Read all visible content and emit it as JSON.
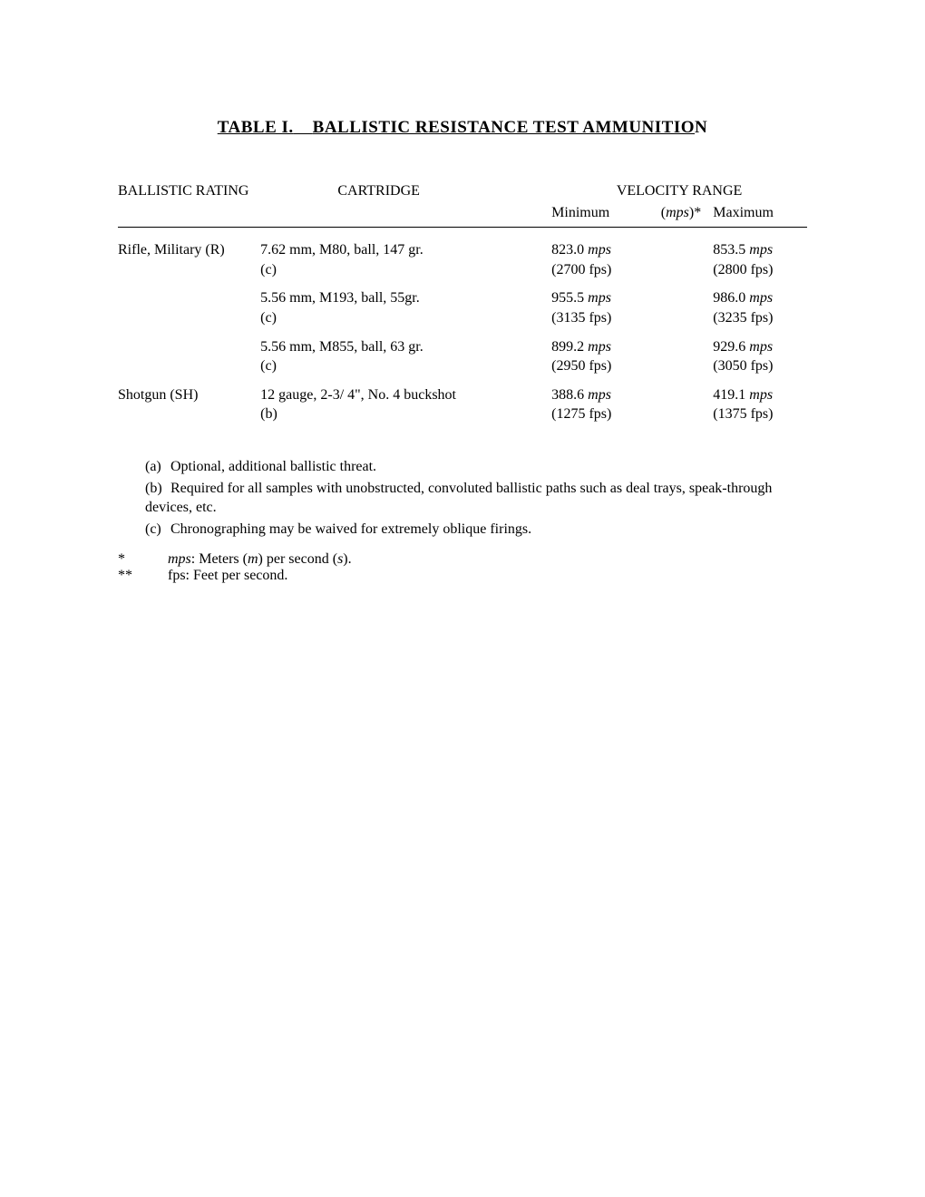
{
  "title": {
    "prefix": "TABLE I.",
    "gap": "    ",
    "main": "BALLISTIC RESISTANCE TEST AMMUNITIO",
    "trailing": "N"
  },
  "headers": {
    "rating": "BALLISTIC RATING",
    "cartridge": "CARTRIDGE",
    "velocity": "VELOCITY RANGE",
    "min": "Minimum",
    "unit_html": "(mps)*",
    "max": "Maximum"
  },
  "rows": [
    {
      "rating": "Rifle, Military (R)",
      "cartridge": "7.62 mm, M80, ball, 147 gr.",
      "note": "(c)",
      "min_mps": "823.0",
      "min_fps": "(2700 fps)",
      "max_mps": "853.5",
      "max_fps": "(2800 fps)"
    },
    {
      "rating": "",
      "cartridge": "5.56 mm, M193, ball, 55gr.",
      "note": "(c)",
      "min_mps": "955.5",
      "min_fps": "(3135 fps)",
      "max_mps": "986.0",
      "max_fps": "(3235 fps)"
    },
    {
      "rating": "",
      "cartridge": "5.56 mm, M855, ball, 63 gr.",
      "note": "(c)",
      "min_mps": "899.2",
      "min_fps": "(2950 fps)",
      "max_mps": "929.6",
      "max_fps": "(3050 fps)"
    },
    {
      "rating": "Shotgun (SH)",
      "cartridge": "12 gauge, 2-3/ 4\", No. 4 buckshot",
      "note": "(b)",
      "min_mps": "388.6",
      "min_fps": "(1275 fps)",
      "max_mps": "419.1",
      "max_fps": "(1375 fps)"
    }
  ],
  "mps_label": "mps",
  "notes": {
    "a": "Optional, additional ballistic threat.",
    "b": "Required for all samples with unobstructed, convoluted ballistic paths such as deal trays, speak-through devices, etc.",
    "c": "Chronographing may be waived for extremely oblique firings."
  },
  "legend": {
    "star1_sym": "*",
    "star1_txt_pre": "mps",
    "star1_txt": ": Meters (m) per second (s).",
    "star2_sym": "**",
    "star2_txt": "fps: Feet per second."
  }
}
